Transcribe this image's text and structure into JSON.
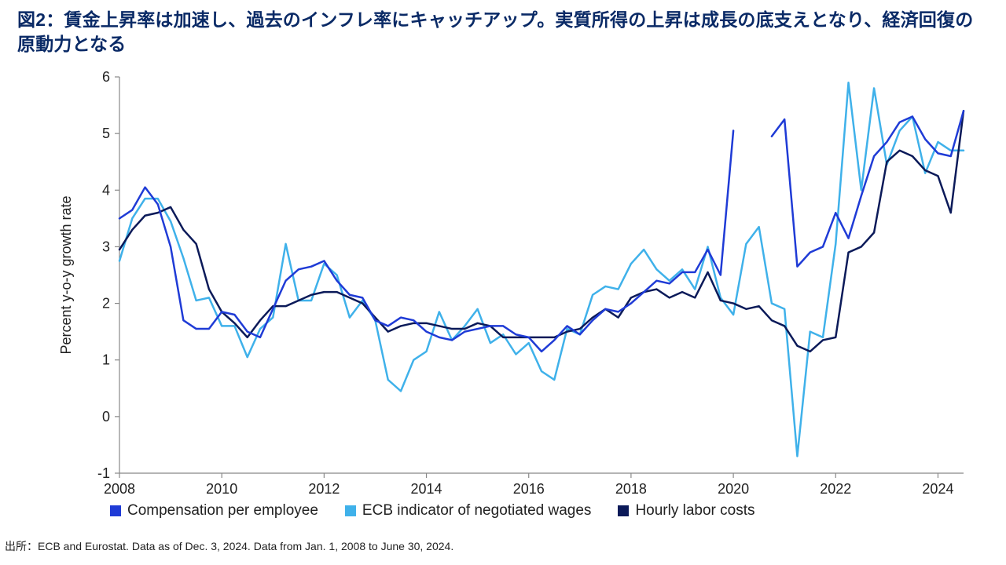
{
  "title": "図2：賃金上昇率は加速し、過去のインフレ率にキャッチアップ。実質所得の上昇は成長の底支えとなり、経済回復の原動力となる",
  "chart": {
    "type": "line",
    "ylabel": "Percent y-o-y growth rate",
    "ylabel_fontsize": 18,
    "background_color": "#ffffff",
    "axis_color": "#888888",
    "text_color": "#222222",
    "line_width": 2.5,
    "x": {
      "min": 2008.0,
      "max": 2024.5,
      "tick_step": 2,
      "ticks": [
        2008,
        2010,
        2012,
        2014,
        2016,
        2018,
        2020,
        2022,
        2024
      ]
    },
    "y": {
      "min": -1,
      "max": 6,
      "tick_step": 1,
      "ticks": [
        -1,
        0,
        1,
        2,
        3,
        4,
        5,
        6
      ]
    },
    "series": [
      {
        "key": "compensation_per_employee",
        "label": "Compensation per employee",
        "color": "#1f3bd6",
        "segments": [
          [
            [
              2008.0,
              3.5
            ],
            [
              2008.25,
              3.65
            ],
            [
              2008.5,
              4.05
            ],
            [
              2008.75,
              3.75
            ],
            [
              2009.0,
              3.0
            ],
            [
              2009.25,
              1.7
            ],
            [
              2009.5,
              1.55
            ],
            [
              2009.75,
              1.55
            ],
            [
              2010.0,
              1.85
            ],
            [
              2010.25,
              1.8
            ],
            [
              2010.5,
              1.5
            ],
            [
              2010.75,
              1.4
            ],
            [
              2011.0,
              1.9
            ],
            [
              2011.25,
              2.4
            ],
            [
              2011.5,
              2.6
            ],
            [
              2011.75,
              2.65
            ],
            [
              2012.0,
              2.75
            ],
            [
              2012.25,
              2.4
            ],
            [
              2012.5,
              2.15
            ],
            [
              2012.75,
              2.1
            ],
            [
              2013.0,
              1.7
            ],
            [
              2013.25,
              1.6
            ],
            [
              2013.5,
              1.75
            ],
            [
              2013.75,
              1.7
            ],
            [
              2014.0,
              1.5
            ],
            [
              2014.25,
              1.4
            ],
            [
              2014.5,
              1.35
            ],
            [
              2014.75,
              1.5
            ],
            [
              2015.0,
              1.55
            ],
            [
              2015.25,
              1.6
            ],
            [
              2015.5,
              1.6
            ],
            [
              2015.75,
              1.45
            ],
            [
              2016.0,
              1.4
            ],
            [
              2016.25,
              1.15
            ],
            [
              2016.5,
              1.35
            ],
            [
              2016.75,
              1.6
            ],
            [
              2017.0,
              1.45
            ],
            [
              2017.25,
              1.7
            ],
            [
              2017.5,
              1.9
            ],
            [
              2017.75,
              1.85
            ],
            [
              2018.0,
              2.0
            ],
            [
              2018.25,
              2.2
            ],
            [
              2018.5,
              2.4
            ],
            [
              2018.75,
              2.35
            ],
            [
              2019.0,
              2.55
            ],
            [
              2019.25,
              2.55
            ],
            [
              2019.5,
              2.95
            ],
            [
              2019.75,
              2.5
            ],
            [
              2020.0,
              5.05
            ]
          ],
          [
            [
              2020.75,
              4.95
            ],
            [
              2021.0,
              5.25
            ],
            [
              2021.25,
              2.65
            ],
            [
              2021.5,
              2.9
            ],
            [
              2021.75,
              3.0
            ],
            [
              2022.0,
              3.6
            ],
            [
              2022.25,
              3.15
            ],
            [
              2022.5,
              3.9
            ],
            [
              2022.75,
              4.6
            ],
            [
              2023.0,
              4.85
            ],
            [
              2023.25,
              5.2
            ],
            [
              2023.5,
              5.3
            ],
            [
              2023.75,
              4.9
            ],
            [
              2024.0,
              4.65
            ],
            [
              2024.25,
              4.6
            ],
            [
              2024.5,
              5.4
            ]
          ]
        ]
      },
      {
        "key": "negotiated_wages",
        "label": "ECB indicator of negotiated wages",
        "color": "#3fb1ea",
        "segments": [
          [
            [
              2008.0,
              2.75
            ],
            [
              2008.25,
              3.5
            ],
            [
              2008.5,
              3.85
            ],
            [
              2008.75,
              3.85
            ],
            [
              2009.0,
              3.45
            ],
            [
              2009.25,
              2.8
            ],
            [
              2009.5,
              2.05
            ],
            [
              2009.75,
              2.1
            ],
            [
              2010.0,
              1.6
            ],
            [
              2010.25,
              1.6
            ],
            [
              2010.5,
              1.05
            ],
            [
              2010.75,
              1.55
            ],
            [
              2011.0,
              1.75
            ],
            [
              2011.25,
              3.05
            ],
            [
              2011.5,
              2.05
            ],
            [
              2011.75,
              2.05
            ],
            [
              2012.0,
              2.7
            ],
            [
              2012.25,
              2.5
            ],
            [
              2012.5,
              1.75
            ],
            [
              2012.75,
              2.05
            ],
            [
              2013.0,
              1.7
            ],
            [
              2013.25,
              0.65
            ],
            [
              2013.5,
              0.45
            ],
            [
              2013.75,
              1.0
            ],
            [
              2014.0,
              1.15
            ],
            [
              2014.25,
              1.85
            ],
            [
              2014.5,
              1.35
            ],
            [
              2014.75,
              1.6
            ],
            [
              2015.0,
              1.9
            ],
            [
              2015.25,
              1.3
            ],
            [
              2015.5,
              1.45
            ],
            [
              2015.75,
              1.1
            ],
            [
              2016.0,
              1.3
            ],
            [
              2016.25,
              0.8
            ],
            [
              2016.5,
              0.65
            ],
            [
              2016.75,
              1.55
            ],
            [
              2017.0,
              1.45
            ],
            [
              2017.25,
              2.15
            ],
            [
              2017.5,
              2.3
            ],
            [
              2017.75,
              2.25
            ],
            [
              2018.0,
              2.7
            ],
            [
              2018.25,
              2.95
            ],
            [
              2018.5,
              2.6
            ],
            [
              2018.75,
              2.4
            ],
            [
              2019.0,
              2.6
            ],
            [
              2019.25,
              2.25
            ],
            [
              2019.5,
              3.0
            ],
            [
              2019.75,
              2.1
            ],
            [
              2020.0,
              1.8
            ],
            [
              2020.25,
              3.05
            ],
            [
              2020.5,
              3.35
            ],
            [
              2020.75,
              2.0
            ],
            [
              2021.0,
              1.9
            ],
            [
              2021.25,
              -0.7
            ],
            [
              2021.5,
              1.5
            ],
            [
              2021.75,
              1.4
            ],
            [
              2022.0,
              3.05
            ],
            [
              2022.25,
              5.9
            ],
            [
              2022.5,
              4.0
            ],
            [
              2022.75,
              5.8
            ],
            [
              2023.0,
              4.45
            ],
            [
              2023.25,
              5.05
            ],
            [
              2023.5,
              5.3
            ],
            [
              2023.75,
              4.3
            ],
            [
              2024.0,
              4.85
            ],
            [
              2024.25,
              4.7
            ],
            [
              2024.5,
              4.7
            ]
          ]
        ]
      },
      {
        "key": "hourly_labor_costs",
        "label": "Hourly labor costs",
        "color": "#0b1a59",
        "segments": [
          [
            [
              2008.0,
              2.95
            ],
            [
              2008.25,
              3.3
            ],
            [
              2008.5,
              3.55
            ],
            [
              2008.75,
              3.6
            ],
            [
              2009.0,
              3.7
            ],
            [
              2009.25,
              3.3
            ],
            [
              2009.5,
              3.05
            ],
            [
              2009.75,
              2.25
            ],
            [
              2010.0,
              1.85
            ],
            [
              2010.25,
              1.65
            ],
            [
              2010.5,
              1.4
            ],
            [
              2010.75,
              1.7
            ],
            [
              2011.0,
              1.95
            ],
            [
              2011.25,
              1.95
            ],
            [
              2011.5,
              2.05
            ],
            [
              2011.75,
              2.15
            ],
            [
              2012.0,
              2.2
            ],
            [
              2012.25,
              2.2
            ],
            [
              2012.5,
              2.1
            ],
            [
              2012.75,
              2.0
            ],
            [
              2013.0,
              1.75
            ],
            [
              2013.25,
              1.5
            ],
            [
              2013.5,
              1.6
            ],
            [
              2013.75,
              1.65
            ],
            [
              2014.0,
              1.65
            ],
            [
              2014.25,
              1.6
            ],
            [
              2014.5,
              1.55
            ],
            [
              2014.75,
              1.55
            ],
            [
              2015.0,
              1.65
            ],
            [
              2015.25,
              1.6
            ],
            [
              2015.5,
              1.4
            ],
            [
              2015.75,
              1.4
            ],
            [
              2016.0,
              1.4
            ],
            [
              2016.25,
              1.4
            ],
            [
              2016.5,
              1.4
            ],
            [
              2016.75,
              1.5
            ],
            [
              2017.0,
              1.55
            ],
            [
              2017.25,
              1.75
            ],
            [
              2017.5,
              1.9
            ],
            [
              2017.75,
              1.75
            ],
            [
              2018.0,
              2.1
            ],
            [
              2018.25,
              2.2
            ],
            [
              2018.5,
              2.25
            ],
            [
              2018.75,
              2.1
            ],
            [
              2019.0,
              2.2
            ],
            [
              2019.25,
              2.1
            ],
            [
              2019.5,
              2.55
            ],
            [
              2019.75,
              2.05
            ],
            [
              2020.0,
              2.0
            ],
            [
              2020.25,
              1.9
            ],
            [
              2020.5,
              1.95
            ],
            [
              2020.75,
              1.7
            ],
            [
              2021.0,
              1.6
            ],
            [
              2021.25,
              1.25
            ],
            [
              2021.5,
              1.15
            ],
            [
              2021.75,
              1.35
            ],
            [
              2022.0,
              1.4
            ],
            [
              2022.25,
              2.9
            ],
            [
              2022.5,
              3.0
            ],
            [
              2022.75,
              3.25
            ],
            [
              2023.0,
              4.5
            ],
            [
              2023.25,
              4.7
            ],
            [
              2023.5,
              4.6
            ],
            [
              2023.75,
              4.35
            ],
            [
              2024.0,
              4.25
            ],
            [
              2024.25,
              3.6
            ],
            [
              2024.5,
              5.4
            ]
          ]
        ]
      }
    ]
  },
  "legend": [
    {
      "label": "Compensation per employee",
      "color": "#1f3bd6"
    },
    {
      "label": "ECB indicator of negotiated wages",
      "color": "#3fb1ea"
    },
    {
      "label": "Hourly labor costs",
      "color": "#0b1a59"
    }
  ],
  "source": "出所：ECB and Eurostat. Data as of Dec. 3, 2024. Data from Jan. 1, 2008 to June 30, 2024."
}
